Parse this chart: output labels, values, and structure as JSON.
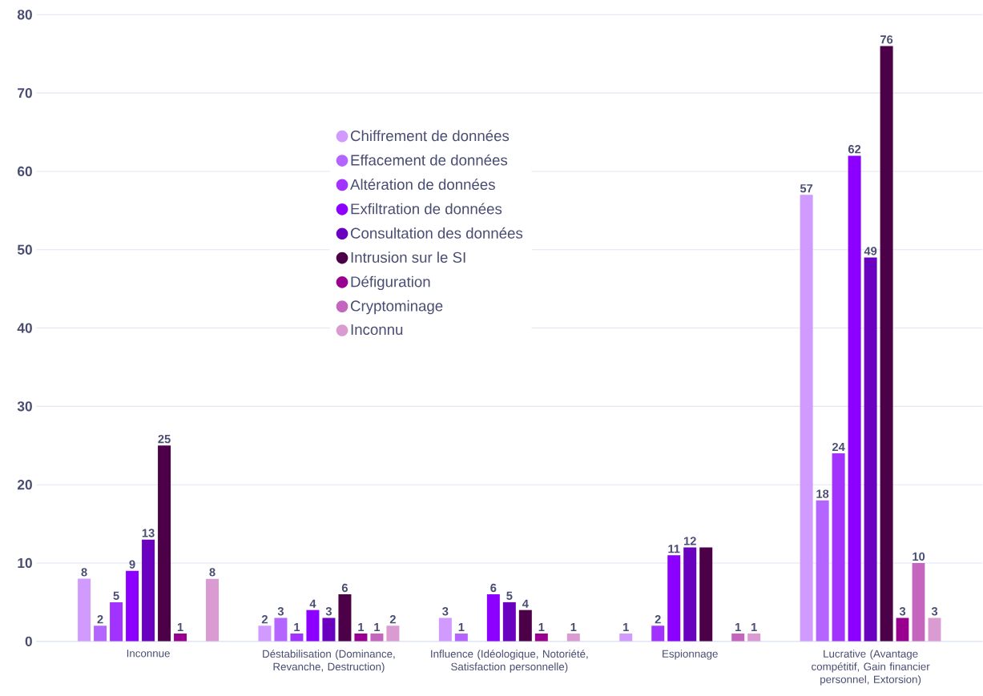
{
  "chart_data": {
    "type": "bar",
    "categories": [
      "Inconnue",
      "Déstabilisation (Dominance, Revanche, Destruction)",
      "Influence (Idéologique, Notoriété, Satisfaction personnelle)",
      "Espionnage",
      "Lucrative (Avantage compétitif, Gain financier personnel, Extorsion)"
    ],
    "series": [
      {
        "name": "Chiffrement de données",
        "color": "#d09aff",
        "values": [
          8,
          2,
          3,
          1,
          57
        ],
        "value_labels": [
          "8",
          "2",
          "3",
          "1",
          "57"
        ]
      },
      {
        "name": "Effacement de données",
        "color": "#b565ff",
        "values": [
          2,
          3,
          1,
          0,
          18
        ],
        "value_labels": [
          "2",
          "3",
          "1",
          null,
          "18"
        ]
      },
      {
        "name": "Altération de données",
        "color": "#a233ff",
        "values": [
          5,
          1,
          0,
          2,
          24
        ],
        "value_labels": [
          "5",
          "1",
          null,
          "2",
          "24"
        ]
      },
      {
        "name": "Exfiltration de données",
        "color": "#8c00ff",
        "values": [
          9,
          4,
          6,
          11,
          62
        ],
        "value_labels": [
          "9",
          "4",
          "6",
          "11",
          "62"
        ]
      },
      {
        "name": "Consultation des données",
        "color": "#6a00c0",
        "values": [
          13,
          3,
          5,
          12,
          49
        ],
        "value_labels": [
          "13",
          "3",
          "5",
          "12",
          "49"
        ]
      },
      {
        "name": "Intrusion sur le SI",
        "color": "#4b0048",
        "values": [
          25,
          6,
          4,
          12,
          76
        ],
        "value_labels": [
          "25",
          "6",
          "4",
          null,
          "76"
        ]
      },
      {
        "name": "Défiguration",
        "color": "#9a0090",
        "values": [
          1,
          1,
          1,
          0,
          3
        ],
        "value_labels": [
          "1",
          "1",
          "1",
          null,
          "3"
        ]
      },
      {
        "name": "Cryptominage",
        "color": "#c466be",
        "values": [
          0,
          1,
          0,
          1,
          10
        ],
        "value_labels": [
          null,
          "1",
          null,
          "1",
          "10"
        ]
      },
      {
        "name": "Inconnu",
        "color": "#da9ad2",
        "values": [
          8,
          2,
          1,
          1,
          3
        ],
        "value_labels": [
          "8",
          "2",
          "1",
          "1",
          "3"
        ]
      }
    ],
    "ylim": [
      0,
      80
    ],
    "yticks": [
      0,
      10,
      20,
      30,
      40,
      50,
      60,
      70,
      80
    ],
    "grid": "y",
    "legend": "top"
  }
}
